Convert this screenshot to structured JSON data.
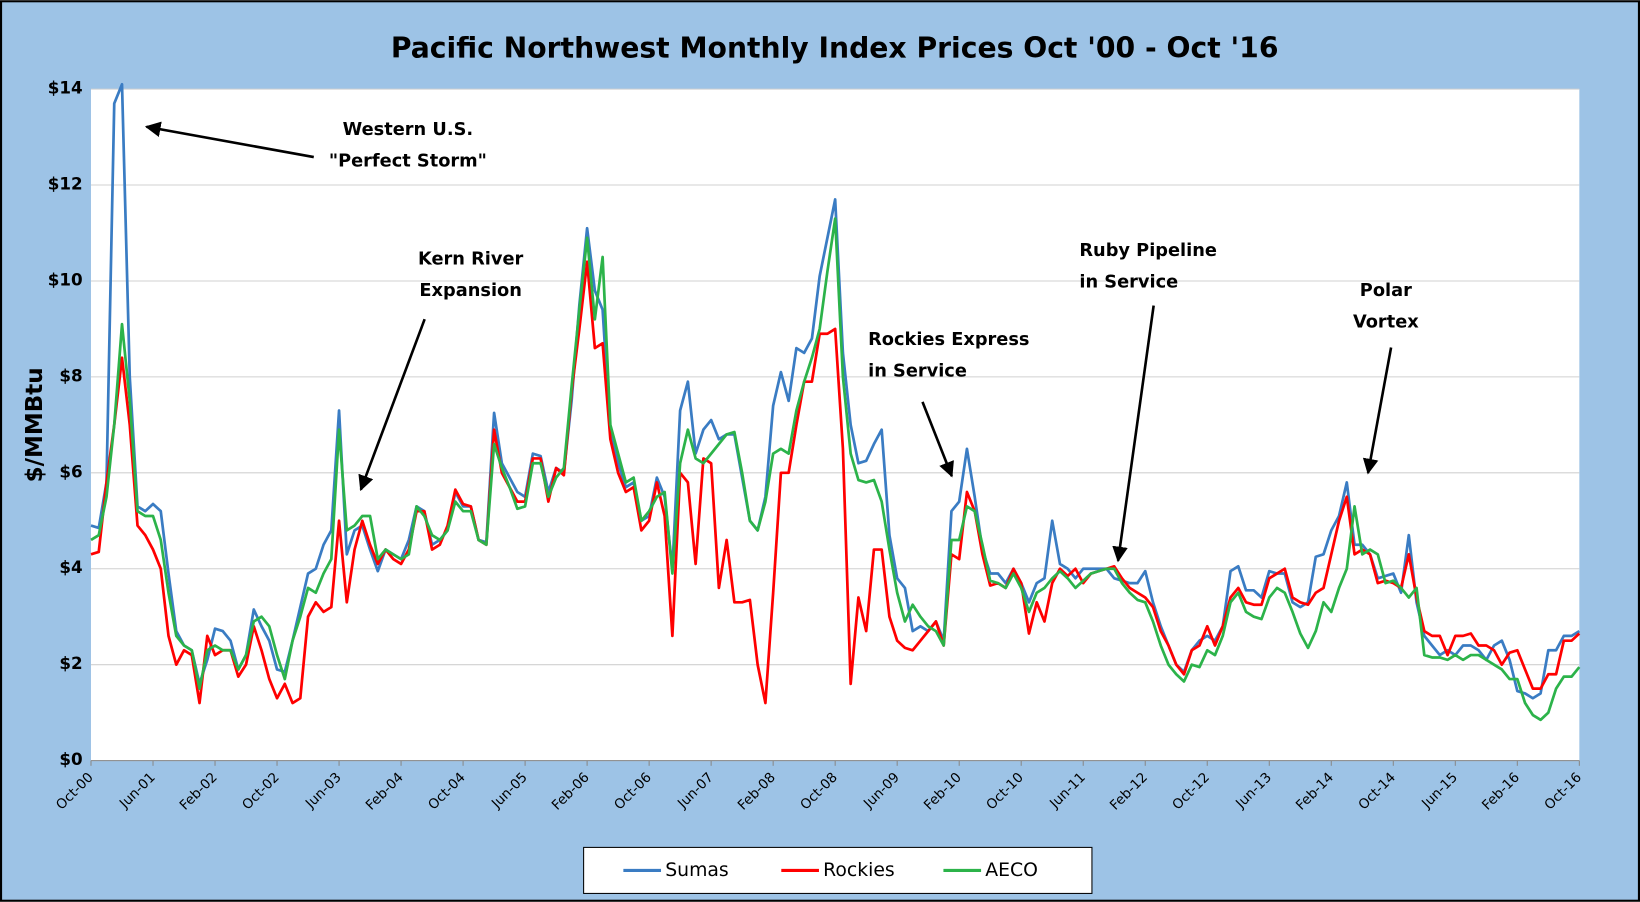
{
  "chart_data": {
    "type": "line",
    "title": "Pacific Northwest Monthly Index Prices Oct '00 - Oct '16",
    "y_label": "$/MMBtu",
    "annotations": [
      {
        "lines": [
          "Western U.S.",
          "\"Perfect Storm\""
        ]
      },
      {
        "lines": [
          "Kern River",
          "Expansion"
        ]
      },
      {
        "lines": [
          "Rockies Express",
          "in Service"
        ]
      },
      {
        "lines": [
          "Ruby Pipeline",
          "in Service"
        ]
      },
      {
        "lines": [
          "Polar",
          "Vortex"
        ]
      }
    ],
    "categories": [
      "Oct-00",
      null,
      null,
      null,
      null,
      null,
      null,
      null,
      "Jun-01",
      null,
      null,
      null,
      null,
      null,
      null,
      null,
      "Feb-02",
      null,
      null,
      null,
      null,
      null,
      null,
      null,
      "Oct-02",
      null,
      null,
      null,
      null,
      null,
      null,
      null,
      "Jun-03",
      null,
      null,
      null,
      null,
      null,
      null,
      null,
      "Feb-04",
      null,
      null,
      null,
      null,
      null,
      null,
      null,
      "Oct-04",
      null,
      null,
      null,
      null,
      null,
      null,
      null,
      "Jun-05",
      null,
      null,
      null,
      null,
      null,
      null,
      null,
      "Feb-06",
      null,
      null,
      null,
      null,
      null,
      null,
      null,
      "Oct-06",
      null,
      null,
      null,
      null,
      null,
      null,
      null,
      "Jun-07",
      null,
      null,
      null,
      null,
      null,
      null,
      null,
      "Feb-08",
      null,
      null,
      null,
      null,
      null,
      null,
      null,
      "Oct-08",
      null,
      null,
      null,
      null,
      null,
      null,
      null,
      "Jun-09",
      null,
      null,
      null,
      null,
      null,
      null,
      null,
      "Feb-10",
      null,
      null,
      null,
      null,
      null,
      null,
      null,
      "Oct-10",
      null,
      null,
      null,
      null,
      null,
      null,
      null,
      "Jun-11",
      null,
      null,
      null,
      null,
      null,
      null,
      null,
      "Feb-12",
      null,
      null,
      null,
      null,
      null,
      null,
      null,
      "Oct-12",
      null,
      null,
      null,
      null,
      null,
      null,
      null,
      "Jun-13",
      null,
      null,
      null,
      null,
      null,
      null,
      null,
      "Feb-14",
      null,
      null,
      null,
      null,
      null,
      null,
      null,
      "Oct-14",
      null,
      null,
      null,
      null,
      null,
      null,
      null,
      "Jun-15",
      null,
      null,
      null,
      null,
      null,
      null,
      null,
      "Feb-16",
      null,
      null,
      null,
      null,
      null,
      null,
      null,
      "Oct-16"
    ],
    "series": [
      {
        "name": "Sumas",
        "color": "#3a7cc3",
        "values": [
          4.9,
          4.85,
          5.8,
          13.7,
          14.1,
          8.0,
          5.3,
          5.2,
          5.35,
          5.2,
          3.9,
          2.7,
          2.4,
          2.3,
          1.6,
          2.1,
          2.75,
          2.7,
          2.5,
          1.9,
          2.2,
          3.15,
          2.8,
          2.5,
          1.9,
          1.85,
          2.5,
          3.2,
          3.9,
          4.0,
          4.5,
          4.8,
          7.3,
          4.3,
          4.8,
          4.9,
          4.4,
          3.95,
          4.4,
          4.3,
          4.2,
          4.6,
          5.3,
          5.2,
          4.5,
          4.6,
          4.8,
          5.6,
          5.3,
          5.3,
          4.6,
          4.55,
          7.25,
          6.2,
          5.9,
          5.6,
          5.5,
          6.4,
          6.35,
          5.6,
          6.1,
          6.0,
          7.5,
          9.5,
          11.1,
          9.8,
          9.4,
          6.8,
          6.2,
          5.7,
          5.8,
          5.0,
          5.1,
          5.9,
          5.5,
          4.0,
          7.3,
          7.9,
          6.4,
          6.9,
          7.1,
          6.7,
          6.8,
          6.8,
          5.9,
          5.0,
          4.8,
          5.5,
          7.4,
          8.1,
          7.5,
          8.6,
          8.5,
          8.8,
          10.1,
          10.9,
          11.7,
          8.5,
          7.0,
          6.2,
          6.25,
          6.6,
          6.9,
          4.7,
          3.8,
          3.6,
          2.7,
          2.8,
          2.7,
          2.9,
          2.5,
          5.2,
          5.4,
          6.5,
          5.5,
          4.4,
          3.9,
          3.9,
          3.7,
          4.0,
          3.7,
          3.3,
          3.7,
          3.8,
          5.0,
          4.1,
          4.0,
          3.8,
          4.0,
          4.0,
          4.0,
          4.0,
          3.8,
          3.75,
          3.7,
          3.7,
          3.95,
          3.3,
          2.8,
          2.4,
          2.0,
          1.85,
          2.3,
          2.5,
          2.6,
          2.5,
          2.8,
          3.95,
          4.05,
          3.55,
          3.55,
          3.4,
          3.95,
          3.9,
          3.9,
          3.3,
          3.2,
          3.3,
          4.25,
          4.3,
          4.8,
          5.1,
          5.8,
          4.5,
          4.5,
          4.3,
          3.8,
          3.85,
          3.9,
          3.5,
          4.7,
          3.3,
          2.6,
          2.4,
          2.2,
          2.3,
          2.2,
          2.4,
          2.4,
          2.3,
          2.1,
          2.4,
          2.5,
          2.1,
          1.45,
          1.4,
          1.3,
          1.4,
          2.3,
          2.3,
          2.6,
          2.6,
          2.7
        ]
      },
      {
        "name": "Rockies",
        "color": "#ff0000",
        "values": [
          4.3,
          4.35,
          5.8,
          7.0,
          8.4,
          7.0,
          4.9,
          4.7,
          4.4,
          4.0,
          2.6,
          2.0,
          2.3,
          2.2,
          1.2,
          2.6,
          2.2,
          2.3,
          2.3,
          1.75,
          2.0,
          2.8,
          2.3,
          1.7,
          1.3,
          1.6,
          1.2,
          1.3,
          3.0,
          3.3,
          3.1,
          3.2,
          5.0,
          3.3,
          4.4,
          5.0,
          4.5,
          4.1,
          4.4,
          4.2,
          4.1,
          4.4,
          5.2,
          5.2,
          4.4,
          4.5,
          4.9,
          5.65,
          5.35,
          5.3,
          4.6,
          4.5,
          6.9,
          6.0,
          5.7,
          5.4,
          5.4,
          6.3,
          6.3,
          5.4,
          6.1,
          5.95,
          7.7,
          9.0,
          10.4,
          8.6,
          8.7,
          6.7,
          6.0,
          5.6,
          5.7,
          4.8,
          5.0,
          5.8,
          5.1,
          2.6,
          6.0,
          5.8,
          4.1,
          6.3,
          6.2,
          3.6,
          4.6,
          3.3,
          3.3,
          3.35,
          2.0,
          1.2,
          3.5,
          6.0,
          6.0,
          7.0,
          7.9,
          7.9,
          8.9,
          8.9,
          9.0,
          6.5,
          1.6,
          3.4,
          2.7,
          4.4,
          4.4,
          3.0,
          2.5,
          2.35,
          2.3,
          2.5,
          2.7,
          2.9,
          2.4,
          4.3,
          4.2,
          5.6,
          5.2,
          4.3,
          3.65,
          3.7,
          3.6,
          4.0,
          3.7,
          2.65,
          3.3,
          2.9,
          3.7,
          4.0,
          3.85,
          4.0,
          3.7,
          3.9,
          3.95,
          4.0,
          4.05,
          3.8,
          3.6,
          3.5,
          3.4,
          3.2,
          2.7,
          2.4,
          2.0,
          1.8,
          2.3,
          2.4,
          2.8,
          2.4,
          2.8,
          3.4,
          3.6,
          3.3,
          3.25,
          3.25,
          3.8,
          3.9,
          4.0,
          3.4,
          3.3,
          3.25,
          3.5,
          3.6,
          4.3,
          5.0,
          5.5,
          4.3,
          4.4,
          4.3,
          3.7,
          3.75,
          3.7,
          3.6,
          4.3,
          3.4,
          2.7,
          2.6,
          2.6,
          2.2,
          2.6,
          2.6,
          2.65,
          2.4,
          2.4,
          2.3,
          2.0,
          2.25,
          2.3,
          1.9,
          1.5,
          1.5,
          1.8,
          1.8,
          2.5,
          2.5,
          2.65
        ]
      },
      {
        "name": "AECO",
        "color": "#2cb34a",
        "values": [
          4.6,
          4.7,
          5.5,
          7.0,
          9.1,
          7.5,
          5.2,
          5.1,
          5.1,
          4.6,
          3.5,
          2.6,
          2.4,
          2.3,
          1.5,
          2.3,
          2.4,
          2.3,
          2.3,
          1.9,
          2.2,
          2.9,
          3.0,
          2.8,
          2.2,
          1.7,
          2.5,
          3.0,
          3.6,
          3.5,
          3.9,
          4.2,
          6.9,
          4.8,
          4.9,
          5.1,
          5.1,
          4.2,
          4.4,
          4.3,
          4.2,
          4.3,
          5.3,
          5.1,
          4.7,
          4.6,
          4.8,
          5.4,
          5.2,
          5.2,
          4.6,
          4.5,
          6.6,
          6.1,
          5.7,
          5.25,
          5.3,
          6.2,
          6.2,
          5.5,
          5.9,
          6.1,
          7.8,
          9.4,
          10.9,
          9.2,
          10.5,
          7.0,
          6.4,
          5.8,
          5.9,
          5.0,
          5.2,
          5.5,
          5.6,
          3.9,
          6.2,
          6.9,
          6.3,
          6.2,
          6.4,
          6.6,
          6.8,
          6.85,
          6.0,
          5.0,
          4.8,
          5.4,
          6.4,
          6.5,
          6.4,
          7.3,
          7.9,
          8.4,
          9.0,
          10.2,
          11.3,
          8.0,
          6.4,
          5.85,
          5.8,
          5.85,
          5.4,
          4.4,
          3.5,
          2.9,
          3.25,
          3.0,
          2.8,
          2.7,
          2.4,
          4.6,
          4.6,
          5.3,
          5.2,
          4.5,
          3.75,
          3.7,
          3.6,
          3.9,
          3.6,
          3.1,
          3.5,
          3.6,
          3.8,
          3.95,
          3.8,
          3.6,
          3.75,
          3.9,
          3.95,
          4.0,
          4.0,
          3.7,
          3.5,
          3.35,
          3.3,
          2.9,
          2.4,
          2.0,
          1.8,
          1.65,
          2.0,
          1.95,
          2.3,
          2.2,
          2.6,
          3.3,
          3.5,
          3.1,
          3.0,
          2.95,
          3.4,
          3.6,
          3.5,
          3.1,
          2.65,
          2.35,
          2.7,
          3.3,
          3.1,
          3.6,
          4.0,
          5.3,
          4.3,
          4.4,
          4.3,
          3.7,
          3.75,
          3.6,
          3.4,
          3.6,
          2.2,
          2.15,
          2.15,
          2.1,
          2.2,
          2.1,
          2.2,
          2.2,
          2.1,
          2.0,
          1.9,
          1.7,
          1.7,
          1.2,
          0.95,
          0.85,
          1.0,
          1.5,
          1.75,
          1.75,
          1.95
        ]
      }
    ],
    "ylim": [
      0,
      14
    ],
    "yticks": [
      {
        "value": 0,
        "label": "$0"
      },
      {
        "value": 2,
        "label": "$2"
      },
      {
        "value": 4,
        "label": "$4"
      },
      {
        "value": 6,
        "label": "$6"
      },
      {
        "value": 8,
        "label": "$8"
      },
      {
        "value": 10,
        "label": "$10"
      },
      {
        "value": 12,
        "label": "$12"
      },
      {
        "value": 14,
        "label": "$14"
      }
    ],
    "grid": true,
    "legend": "bottom"
  }
}
